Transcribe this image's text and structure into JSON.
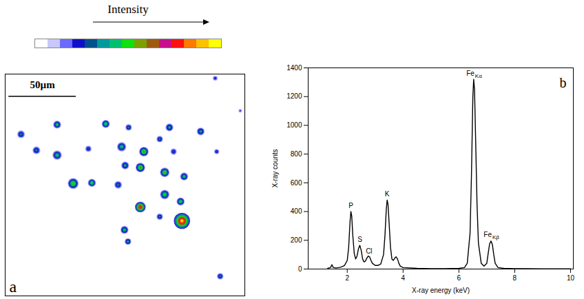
{
  "chart_data": [
    {
      "type": "map",
      "panel": "a",
      "xlim": [
        0,
        178
      ],
      "ylim": [
        0,
        165
      ],
      "tick_labels": false,
      "scale_bar": {
        "value": 50,
        "label": "50µm"
      },
      "color_scale": {
        "label": "Intensity",
        "range": [
          0,
          1
        ],
        "colors": [
          "#ffffff",
          "#c8c8ff",
          "#6a6aff",
          "#1010c8",
          "#00508c",
          "#009a9a",
          "#00c070",
          "#10e010",
          "#7ca000",
          "#a05a10",
          "#c8108c",
          "#ff1010",
          "#ff7a00",
          "#ffc000",
          "#ffff00"
        ]
      },
      "spots": {
        "x": [
          11.8,
          38.6,
          74.7,
          91.7,
          122,
          23.2,
          38.6,
          61.8,
          86.5,
          103,
          114.8,
          145.2,
          125.1,
          89.1,
          100.4,
          118.5,
          132.9,
          50.5,
          64.4,
          83.9,
          100.4,
          118.5,
          130.3,
          114.8,
          131.3,
          88.6,
          91.2,
          157.1,
          156,
          159.7,
          174.6
        ],
        "y": [
          44.8,
          37.6,
          37.1,
          39.7,
          39.7,
          56.7,
          60.3,
          55.6,
          54.1,
          57.7,
          48.4,
          42.7,
          57.7,
          68,
          69.5,
          73.1,
          76.2,
          81.4,
          80.9,
          82.4,
          98.9,
          89.6,
          94.8,
          106.1,
          109.2,
          115.9,
          124.6,
          57.7,
          3.1,
          150.4,
          27.3
        ],
        "size": [
          3,
          3,
          3,
          2.5,
          3,
          3,
          3.5,
          2.5,
          3.5,
          3.5,
          2.5,
          3,
          2.5,
          3,
          3.5,
          3.5,
          3,
          4,
          3,
          3,
          4,
          3.5,
          3,
          2.5,
          6,
          3,
          2.5,
          2,
          2,
          2.5,
          1.5
        ],
        "intensity": [
          0.35,
          0.45,
          0.5,
          0.35,
          0.4,
          0.35,
          0.45,
          0.3,
          0.45,
          0.6,
          0.35,
          0.4,
          0.3,
          0.4,
          0.6,
          0.55,
          0.45,
          0.55,
          0.5,
          0.35,
          0.8,
          0.5,
          0.5,
          0.35,
          0.95,
          0.45,
          0.4,
          0.3,
          0.25,
          0.35,
          0.2
        ]
      }
    },
    {
      "type": "line",
      "panel": "b",
      "x_label": "X-ray energy (keV)",
      "y_label": "X-ray counts",
      "xlim": [
        0.6,
        10.1
      ],
      "ylim": [
        0,
        1400
      ],
      "xticks": [
        2,
        4,
        6,
        8,
        10
      ],
      "yticks": [
        0,
        200,
        400,
        600,
        800,
        1000,
        1200,
        1400
      ],
      "color": "#000000",
      "x": [
        1.3,
        1.4,
        1.45,
        1.5,
        1.6,
        1.7,
        1.8,
        1.9,
        2.0,
        2.05,
        2.1,
        2.13,
        2.16,
        2.2,
        2.25,
        2.3,
        2.35,
        2.4,
        2.45,
        2.5,
        2.55,
        2.6,
        2.65,
        2.7,
        2.75,
        2.8,
        2.85,
        2.9,
        3.0,
        3.1,
        3.2,
        3.3,
        3.35,
        3.4,
        3.43,
        3.46,
        3.5,
        3.55,
        3.6,
        3.65,
        3.7,
        3.75,
        3.8,
        3.85,
        3.9,
        4.0,
        4.5,
        5.0,
        5.5,
        6.0,
        6.2,
        6.3,
        6.4,
        6.45,
        6.5,
        6.53,
        6.56,
        6.6,
        6.65,
        6.7,
        6.8,
        6.9,
        7.0,
        7.05,
        7.1,
        7.15,
        7.2,
        7.25,
        7.3,
        7.4,
        7.6,
        8.0,
        9.0,
        10.0
      ],
      "values": [
        5,
        10,
        30,
        10,
        8,
        10,
        15,
        25,
        60,
        150,
        330,
        400,
        370,
        230,
        110,
        70,
        90,
        140,
        165,
        130,
        70,
        50,
        55,
        75,
        90,
        85,
        60,
        40,
        25,
        25,
        35,
        100,
        230,
        420,
        480,
        450,
        320,
        150,
        70,
        60,
        75,
        85,
        70,
        40,
        20,
        10,
        5,
        3,
        3,
        5,
        10,
        40,
        250,
        650,
        1200,
        1320,
        1250,
        900,
        450,
        180,
        40,
        20,
        40,
        110,
        175,
        195,
        170,
        100,
        40,
        10,
        5,
        3,
        2,
        2
      ],
      "annotations": [
        {
          "text": "P",
          "x": 2.13,
          "y": 440
        },
        {
          "text": "S",
          "x": 2.45,
          "y": 205
        },
        {
          "text": "Cl",
          "x": 2.78,
          "y": 125
        },
        {
          "text": "K",
          "x": 3.43,
          "y": 520
        },
        {
          "text": "Fe",
          "sub": "Kα",
          "x": 6.53,
          "y": 1362
        },
        {
          "text": "Fe",
          "sub": "Kβ",
          "x": 7.15,
          "y": 240
        }
      ]
    }
  ]
}
